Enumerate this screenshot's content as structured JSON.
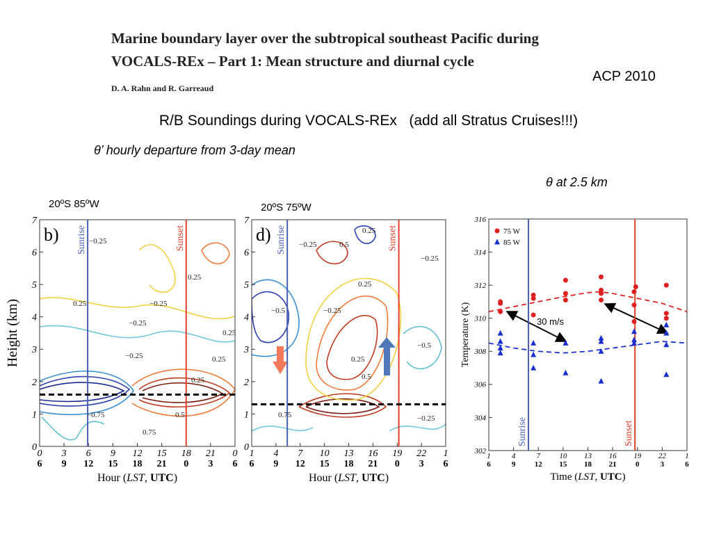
{
  "header": {
    "paper_title": [
      "Marine boundary layer over the subtropical southeast Pacific during",
      "VOCALS-REx – Part 1: Mean structure and diurnal cycle"
    ],
    "authors": "D. A. Rahn and R. Garreaud",
    "journal": "ACP 2010",
    "slide_title": "R/B Soundings during VOCALS-REx   (add all Stratus Cruises!!!)",
    "subtitle": "θ’ hourly departure from 3-day mean",
    "scatter_caption": "θ at 2.5 km",
    "site_labels": [
      "20ºS 85ºW",
      "20ºS 75ºW"
    ]
  },
  "chart_data": [
    {
      "type": "contour",
      "panel": "b)",
      "ylabel": "Height (km)",
      "xlabel": [
        "Hour (",
        "LST",
        ", ",
        "UTC",
        ")"
      ],
      "xlim": [
        0,
        24
      ],
      "xticks": [
        0,
        3,
        6,
        9,
        12,
        15,
        18,
        21,
        {
          "value": 24,
          "label": "0"
        }
      ],
      "utc_labels": [
        6,
        9,
        12,
        15,
        18,
        21,
        0,
        3,
        6
      ],
      "ylim": [
        0,
        7
      ],
      "yticks": [
        0,
        1,
        2,
        3,
        4,
        5,
        6,
        7
      ],
      "markers": [
        {
          "label": "Sunrise",
          "x": 5.9,
          "color": "#4a5fb5"
        },
        {
          "label": "Sunset",
          "x": 18,
          "color": "#e0402a"
        }
      ],
      "dashed_height": 1.6,
      "contour_labels": [
        "−0.25",
        "0.25",
        "0.25",
        "−0.25",
        "−0.25",
        "0.25",
        "−0.25",
        "0.25",
        "0.25",
        "−0.75",
        "0.75",
        "0.5"
      ]
    },
    {
      "type": "contour",
      "panel": "d)",
      "xlabel": [
        "Hour (",
        "LST",
        ", ",
        "UTC",
        ")"
      ],
      "xlim": [
        1,
        25
      ],
      "xticks": [
        1,
        4,
        7,
        10,
        13,
        16,
        19,
        22,
        {
          "value": 25,
          "label": "1"
        }
      ],
      "utc_labels": [
        6,
        9,
        12,
        15,
        18,
        21,
        0,
        3,
        6
      ],
      "ylim": [
        0,
        7
      ],
      "yticks": [
        0,
        1,
        2,
        3,
        4,
        5,
        6,
        7
      ],
      "markers": [
        {
          "label": "Sunrise",
          "x": 5.4,
          "color": "#4a5fb5"
        },
        {
          "label": "Sunset",
          "x": 19.2,
          "color": "#e0402a"
        }
      ],
      "dashed_height": 1.3,
      "contour_labels": [
        "−0.25",
        "0.5",
        "0.25",
        "0.25",
        "−0.25",
        "−0.5",
        "0.25",
        "−0.25",
        "−0.5",
        "0.5",
        "0.75",
        "−0.25"
      ]
    },
    {
      "type": "scatter",
      "ylabel": "Temperature (K)",
      "xlabel": [
        "Time (",
        "LST",
        ", ",
        "UTC",
        ")"
      ],
      "xlim": [
        1,
        25
      ],
      "xticks": [
        1,
        4,
        7,
        10,
        13,
        16,
        19,
        22,
        {
          "value": 25,
          "label": "1"
        }
      ],
      "utc_labels": [
        6,
        9,
        12,
        15,
        18,
        21,
        0,
        3,
        6
      ],
      "ylim": [
        302,
        316
      ],
      "yticks": [
        302,
        304,
        306,
        308,
        310,
        312,
        314,
        316
      ],
      "markers": [
        {
          "label": "Sunrise",
          "x": 5.8,
          "color": "#4a5fb5"
        },
        {
          "label": "Sunset",
          "x": 18.7,
          "color": "#e0402a"
        }
      ],
      "series": [
        {
          "name": "75 W",
          "color": "#e02020",
          "marker": "circle",
          "x": [
            2.4,
            2.4,
            2.4,
            6.4,
            6.4,
            6.4,
            10.3,
            10.3,
            10.3,
            14.6,
            14.6,
            14.6,
            14.6,
            18.6,
            18.6,
            18.6,
            18.8,
            22.5,
            22.5,
            22.5
          ],
          "values": [
            311,
            310.9,
            310.4,
            311.4,
            311.2,
            310.2,
            312.3,
            311.5,
            311.1,
            312.5,
            311.7,
            311.5,
            311.1,
            311.6,
            310.8,
            309.8,
            311.9,
            312,
            310.3,
            310
          ]
        },
        {
          "name": "85 W",
          "color": "#1a2fd0",
          "marker": "triangle",
          "x": [
            2.4,
            2.4,
            2.4,
            2.4,
            6.4,
            6.4,
            6.4,
            10.3,
            10.3,
            14.6,
            14.6,
            14.6,
            14.6,
            18.6,
            18.6,
            18.6,
            22.5,
            22.5,
            22.5,
            22.5
          ],
          "values": [
            309.1,
            308.6,
            308.2,
            307.9,
            308.5,
            307.8,
            307,
            308.5,
            306.7,
            308.8,
            308.6,
            308,
            306.2,
            309.2,
            308.7,
            308.5,
            309.6,
            309.1,
            308.4,
            306.6
          ]
        }
      ],
      "curves": [
        {
          "color": "#e02020",
          "x": [
            1,
            4,
            7,
            10,
            13,
            14.5,
            16,
            19,
            22,
            25
          ],
          "values": [
            310.4,
            310.7,
            311,
            311.3,
            311.55,
            311.6,
            311.5,
            311.2,
            310.9,
            310.4
          ]
        },
        {
          "color": "#1a2fd0",
          "x": [
            1,
            4,
            7,
            10,
            13,
            16,
            19,
            22,
            25
          ],
          "values": [
            308.5,
            308.2,
            308,
            307.9,
            308,
            308.2,
            308.4,
            308.6,
            308.5
          ]
        }
      ],
      "annotation": "30 m/s"
    }
  ]
}
